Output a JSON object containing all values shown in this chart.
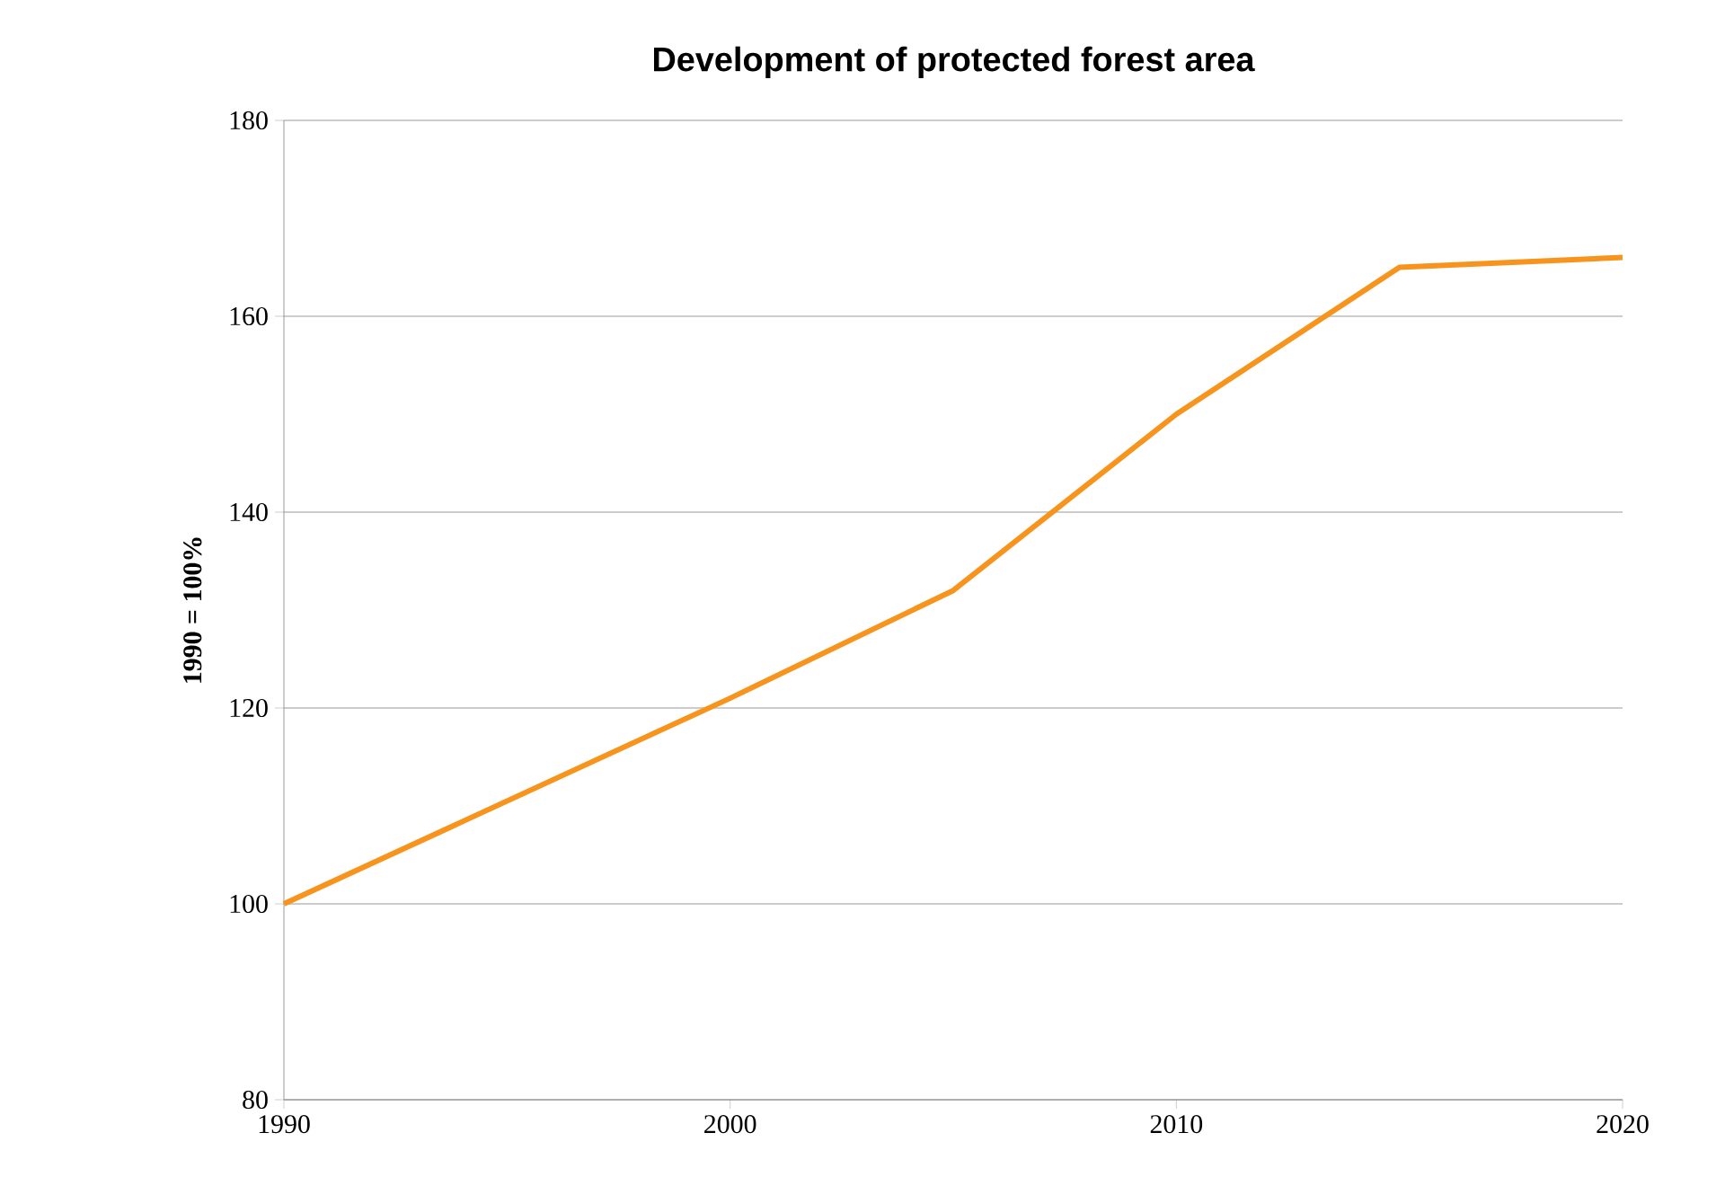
{
  "chart_data": {
    "type": "line",
    "title": "Development of protected forest area",
    "ylabel": "1990 = 100%",
    "x": [
      1990,
      2000,
      2005,
      2010,
      2015,
      2020
    ],
    "series": [
      {
        "color": "#f7941d",
        "values": [
          100,
          121,
          132,
          150,
          165,
          166
        ]
      }
    ],
    "xlim": [
      1990,
      2020
    ],
    "xticks": [
      1990,
      2000,
      2010,
      2020
    ],
    "ylim": [
      80,
      180
    ],
    "yticks": [
      80,
      100,
      120,
      140,
      160,
      180
    ],
    "grid": "y"
  }
}
